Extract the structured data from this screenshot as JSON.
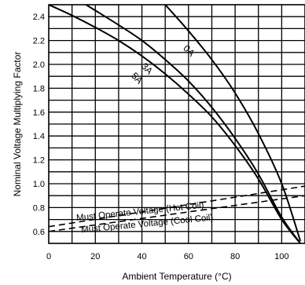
{
  "chart_data": {
    "type": "line",
    "xlabel": "Ambient Temperature (°C)",
    "ylabel": "Nominal Voltage Multiplying Factor",
    "xlim": [
      0,
      110
    ],
    "ylim": [
      0.5,
      2.5
    ],
    "x_ticks": [
      {
        "value": 0,
        "label": "0"
      },
      {
        "value": 20,
        "label": "20"
      },
      {
        "value": 40,
        "label": "40"
      },
      {
        "value": 60,
        "label": "60"
      },
      {
        "value": 80,
        "label": "80"
      },
      {
        "value": 100,
        "label": "100"
      }
    ],
    "y_ticks": [
      {
        "value": 0.6,
        "label": "0.6"
      },
      {
        "value": 0.8,
        "label": "0.8"
      },
      {
        "value": 1.0,
        "label": "1.0"
      },
      {
        "value": 1.2,
        "label": "1.2"
      },
      {
        "value": 1.4,
        "label": "1.4"
      },
      {
        "value": 1.6,
        "label": "1.6"
      },
      {
        "value": 1.8,
        "label": "1.8"
      },
      {
        "value": 2.0,
        "label": "2.0"
      },
      {
        "value": 2.2,
        "label": "2.2"
      },
      {
        "value": 2.4,
        "label": "2.4"
      }
    ],
    "grid_x_step": 10,
    "grid_y_step": 0.1,
    "series": [
      {
        "name": "0A",
        "style": "solid",
        "x": [
          50,
          60,
          70,
          80,
          90,
          100,
          108
        ],
        "y": [
          2.5,
          2.28,
          2.04,
          1.76,
          1.42,
          1.0,
          0.52
        ]
      },
      {
        "name": "3A",
        "style": "solid",
        "x": [
          16,
          30,
          40,
          50,
          60,
          70,
          80,
          90,
          100,
          108
        ],
        "y": [
          2.5,
          2.33,
          2.2,
          2.04,
          1.86,
          1.64,
          1.38,
          1.08,
          0.72,
          0.5
        ]
      },
      {
        "name": "5A",
        "style": "solid",
        "x": [
          0,
          10,
          20,
          30,
          40,
          50,
          60,
          70,
          80,
          90,
          100,
          108
        ],
        "y": [
          2.5,
          2.41,
          2.31,
          2.2,
          2.07,
          1.92,
          1.75,
          1.56,
          1.32,
          1.04,
          0.7,
          0.5
        ]
      },
      {
        "name": "Must Operate Voltage (Hot Coil)",
        "style": "dashed",
        "x": [
          0,
          110
        ],
        "y": [
          0.64,
          0.98
        ]
      },
      {
        "name": "Must Operate Voltage (Cool Coil)",
        "style": "dashed",
        "x": [
          0,
          110
        ],
        "y": [
          0.6,
          0.9
        ]
      }
    ]
  }
}
